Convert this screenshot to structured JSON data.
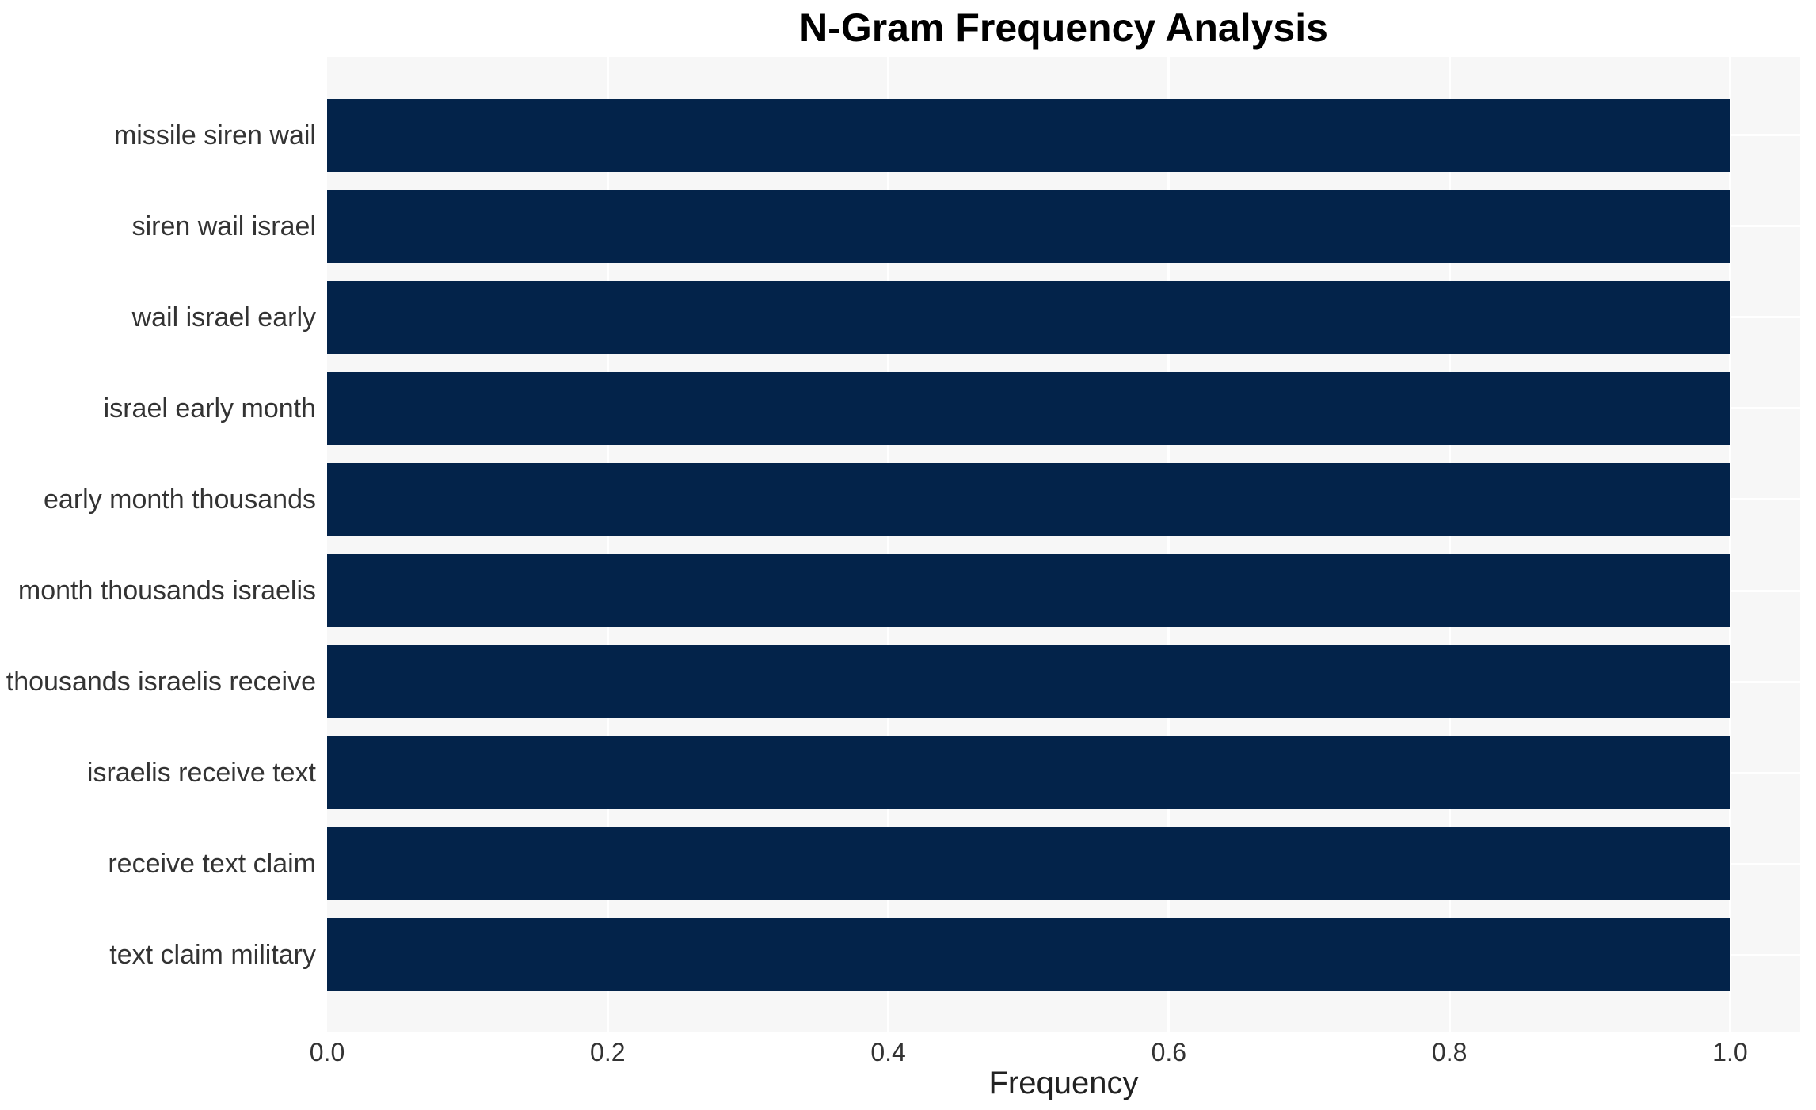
{
  "title": "N-Gram Frequency Analysis",
  "colors": {
    "bar": "#03234a",
    "plot_background": "#f7f7f7",
    "gridline": "#ffffff",
    "tick_text": "#333333",
    "title_text": "#000000",
    "figure_background": "#ffffff"
  },
  "chart_data": {
    "type": "bar",
    "orientation": "horizontal",
    "title": "N-Gram Frequency Analysis",
    "xlabel": "Frequency",
    "ylabel": "",
    "categories": [
      "missile siren wail",
      "siren wail israel",
      "wail israel early",
      "israel early month",
      "early month thousands",
      "month thousands israelis",
      "thousands israelis receive",
      "israelis receive text",
      "receive text claim",
      "text claim military"
    ],
    "values": [
      1.0,
      1.0,
      1.0,
      1.0,
      1.0,
      1.0,
      1.0,
      1.0,
      1.0,
      1.0
    ],
    "xlim": [
      0,
      1.05
    ],
    "xticks": [
      0.0,
      0.2,
      0.4,
      0.6,
      0.8,
      1.0
    ],
    "xtick_labels": [
      "0.0",
      "0.2",
      "0.4",
      "0.6",
      "0.8",
      "1.0"
    ],
    "grid": true,
    "legend": false
  }
}
